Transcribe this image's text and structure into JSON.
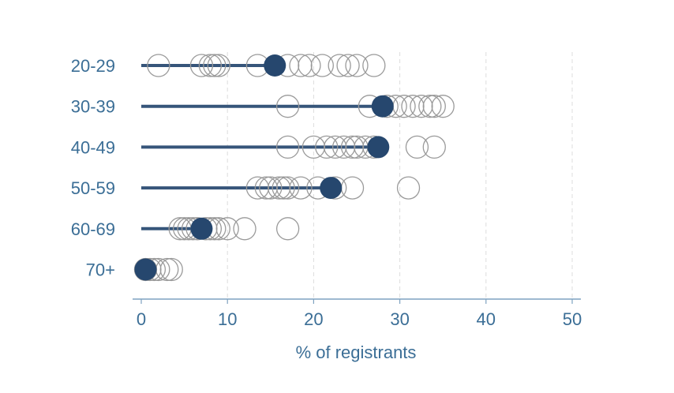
{
  "colors": {
    "text": "#3b6e96",
    "mean": "#26476e",
    "bar": "#36557a",
    "hollow": "#9a9a9a",
    "grid": "#dddddd",
    "axis": "#7ea2c0"
  },
  "chart_data": {
    "type": "scatter",
    "title": "",
    "xlabel": "% of registrants",
    "ylabel": "",
    "xlim": [
      0,
      50
    ],
    "xticks": [
      "0",
      "10",
      "20",
      "30",
      "40",
      "50"
    ],
    "grid": "vertical dashed",
    "categories": [
      "20-29",
      "30-39",
      "40-49",
      "50-59",
      "60-69",
      "70+"
    ],
    "series": [
      {
        "marker": "hollow",
        "values": [
          [
            2,
            7,
            8,
            8.5,
            9,
            13.5,
            17,
            18.5,
            19.5,
            21,
            23,
            24,
            25,
            27
          ],
          [
            17,
            26.5,
            28.5,
            29.5,
            30.5,
            31.5,
            32.5,
            33.5,
            34,
            35
          ],
          [
            17,
            20,
            21.5,
            22.5,
            23.5,
            24.5,
            25,
            26,
            27,
            32,
            34
          ],
          [
            13.5,
            14.5,
            15,
            16,
            16.5,
            17,
            18.5,
            20.5,
            22.5,
            24.5,
            31
          ],
          [
            4.5,
            5,
            5.5,
            6,
            6.5,
            7.5,
            8,
            8.5,
            9,
            10,
            12,
            17
          ],
          [
            0.5,
            1,
            1.5,
            2,
            3,
            3.5
          ]
        ]
      },
      {
        "marker": "filled",
        "values": [
          15.5,
          28,
          27.5,
          22,
          7,
          0.5
        ]
      }
    ]
  }
}
